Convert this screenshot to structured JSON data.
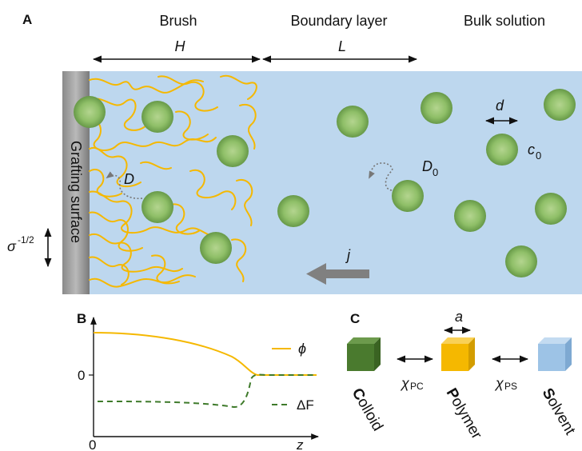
{
  "panel_a": {
    "label": "A",
    "region_brush": "Brush",
    "region_boundary": "Boundary layer",
    "region_bulk": "Bulk solution",
    "brush_height_symbol": "H",
    "boundary_length_symbol": "L",
    "surface_label": "Grafting surface",
    "grafting_spacing_base": "σ",
    "grafting_spacing_exp": "-1/2",
    "brush_diffusion_symbol": "D",
    "bulk_diffusion_symbol": "D",
    "bulk_diffusion_subscript": "0",
    "particle_diameter_symbol": "d",
    "concentration_symbol": "c",
    "concentration_subscript": "0",
    "flux_symbol": "j"
  },
  "panel_b": {
    "label": "B",
    "x_origin_tick": "0",
    "y_zero_tick": "0",
    "x_axis_label": "z",
    "legend_phi": "ϕ",
    "legend_delta_f": "ΔF",
    "colors": {
      "phi": "#f5b800",
      "delta_f": "#3e7a2a"
    }
  },
  "panel_c": {
    "label": "C",
    "monomer_size_symbol": "a",
    "chi_symbol": "χ",
    "chi_pc_subscript": "PC",
    "chi_ps_subscript": "PS",
    "colloid_first": "C",
    "colloid_rest": "olloid",
    "polymer_first": "P",
    "polymer_rest": "olymer",
    "solvent_first": "S",
    "solvent_rest": "olvent",
    "colors": {
      "colloid": "#4a7a2e",
      "polymer": "#f5b800",
      "solvent": "#9dc3e6"
    }
  }
}
